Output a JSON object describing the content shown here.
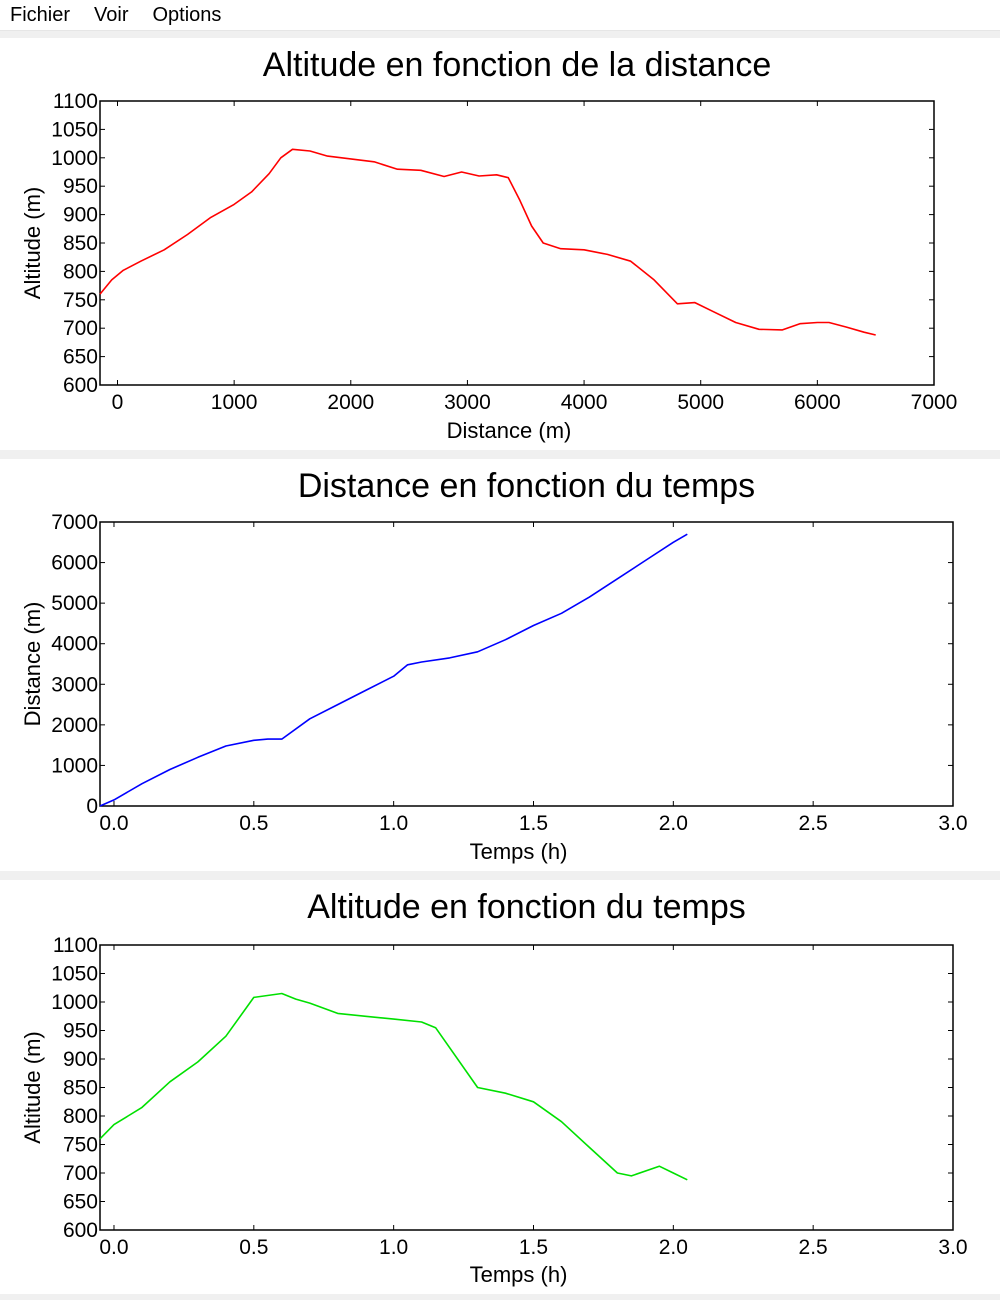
{
  "menu": {
    "items": [
      "Fichier",
      "Voir",
      "Options"
    ]
  },
  "chart_data": [
    {
      "type": "line",
      "title": "Altitude en fonction de la distance",
      "xlabel": "Distance (m)",
      "ylabel": "Altitude (m)",
      "xlim": [
        -150,
        7000
      ],
      "ylim": [
        600,
        1100
      ],
      "xticks": [
        0,
        1000,
        2000,
        3000,
        4000,
        5000,
        6000,
        7000
      ],
      "xtick_labels": [
        "0",
        "1000",
        "2000",
        "3000",
        "4000",
        "5000",
        "6000",
        "7000"
      ],
      "yticks": [
        600,
        650,
        700,
        750,
        800,
        850,
        900,
        950,
        1000,
        1050,
        1100
      ],
      "ytick_labels": [
        "600",
        "650",
        "700",
        "750",
        "800",
        "850",
        "900",
        "950",
        "1000",
        "1050",
        "1100"
      ],
      "grid": false,
      "series": [
        {
          "color": "#ff0000",
          "x": [
            -150,
            -50,
            50,
            200,
            400,
            600,
            800,
            1000,
            1150,
            1300,
            1400,
            1500,
            1650,
            1800,
            2000,
            2200,
            2400,
            2600,
            2800,
            2950,
            3100,
            3250,
            3350,
            3450,
            3550,
            3650,
            3800,
            4000,
            4200,
            4400,
            4600,
            4800,
            4950,
            5100,
            5300,
            5500,
            5700,
            5850,
            6000,
            6100,
            6250,
            6400,
            6500
          ],
          "y": [
            760,
            785,
            802,
            818,
            838,
            865,
            895,
            918,
            940,
            972,
            1000,
            1015,
            1012,
            1003,
            998,
            993,
            980,
            978,
            967,
            975,
            968,
            970,
            965,
            925,
            880,
            850,
            840,
            838,
            830,
            818,
            785,
            743,
            745,
            730,
            710,
            698,
            697,
            708,
            710,
            710,
            702,
            693,
            688
          ]
        }
      ]
    },
    {
      "type": "line",
      "title": "Distance en fonction du temps",
      "xlabel": "Temps (h)",
      "ylabel": "Distance (m)",
      "xlim": [
        -0.05,
        3.0
      ],
      "ylim": [
        0,
        7000
      ],
      "xticks": [
        0.0,
        0.5,
        1.0,
        1.5,
        2.0,
        2.5,
        3.0
      ],
      "xtick_labels": [
        "0.0",
        "0.5",
        "1.0",
        "1.5",
        "2.0",
        "2.5",
        "3.0"
      ],
      "yticks": [
        0,
        1000,
        2000,
        3000,
        4000,
        5000,
        6000,
        7000
      ],
      "ytick_labels": [
        "0",
        "1000",
        "2000",
        "3000",
        "4000",
        "5000",
        "6000",
        "7000"
      ],
      "grid": false,
      "series": [
        {
          "color": "#0000ff",
          "x": [
            -0.05,
            0.0,
            0.1,
            0.2,
            0.3,
            0.4,
            0.5,
            0.55,
            0.6,
            0.7,
            0.8,
            0.9,
            1.0,
            1.05,
            1.1,
            1.2,
            1.3,
            1.4,
            1.5,
            1.6,
            1.7,
            1.8,
            1.9,
            2.0,
            2.05
          ],
          "y": [
            0,
            150,
            550,
            900,
            1200,
            1480,
            1620,
            1650,
            1650,
            2150,
            2500,
            2850,
            3200,
            3480,
            3550,
            3650,
            3800,
            4100,
            4450,
            4750,
            5150,
            5600,
            6050,
            6500,
            6700
          ]
        }
      ]
    },
    {
      "type": "line",
      "title": "Altitude en fonction du temps",
      "xlabel": "Temps (h)",
      "ylabel": "Altitude (m)",
      "xlim": [
        -0.05,
        3.0
      ],
      "ylim": [
        600,
        1100
      ],
      "xticks": [
        0.0,
        0.5,
        1.0,
        1.5,
        2.0,
        2.5,
        3.0
      ],
      "xtick_labels": [
        "0.0",
        "0.5",
        "1.0",
        "1.5",
        "2.0",
        "2.5",
        "3.0"
      ],
      "yticks": [
        600,
        650,
        700,
        750,
        800,
        850,
        900,
        950,
        1000,
        1050,
        1100
      ],
      "ytick_labels": [
        "600",
        "650",
        "700",
        "750",
        "800",
        "850",
        "900",
        "950",
        "1000",
        "1050",
        "1100"
      ],
      "grid": false,
      "series": [
        {
          "color": "#00e000",
          "x": [
            -0.05,
            0.0,
            0.05,
            0.1,
            0.2,
            0.3,
            0.4,
            0.5,
            0.6,
            0.65,
            0.7,
            0.8,
            0.9,
            1.0,
            1.1,
            1.15,
            1.3,
            1.4,
            1.5,
            1.6,
            1.7,
            1.8,
            1.85,
            1.95,
            2.0,
            2.05
          ],
          "y": [
            760,
            785,
            800,
            815,
            860,
            895,
            940,
            1008,
            1015,
            1005,
            998,
            980,
            975,
            970,
            965,
            955,
            850,
            840,
            825,
            790,
            745,
            700,
            695,
            712,
            700,
            688
          ]
        }
      ]
    }
  ]
}
